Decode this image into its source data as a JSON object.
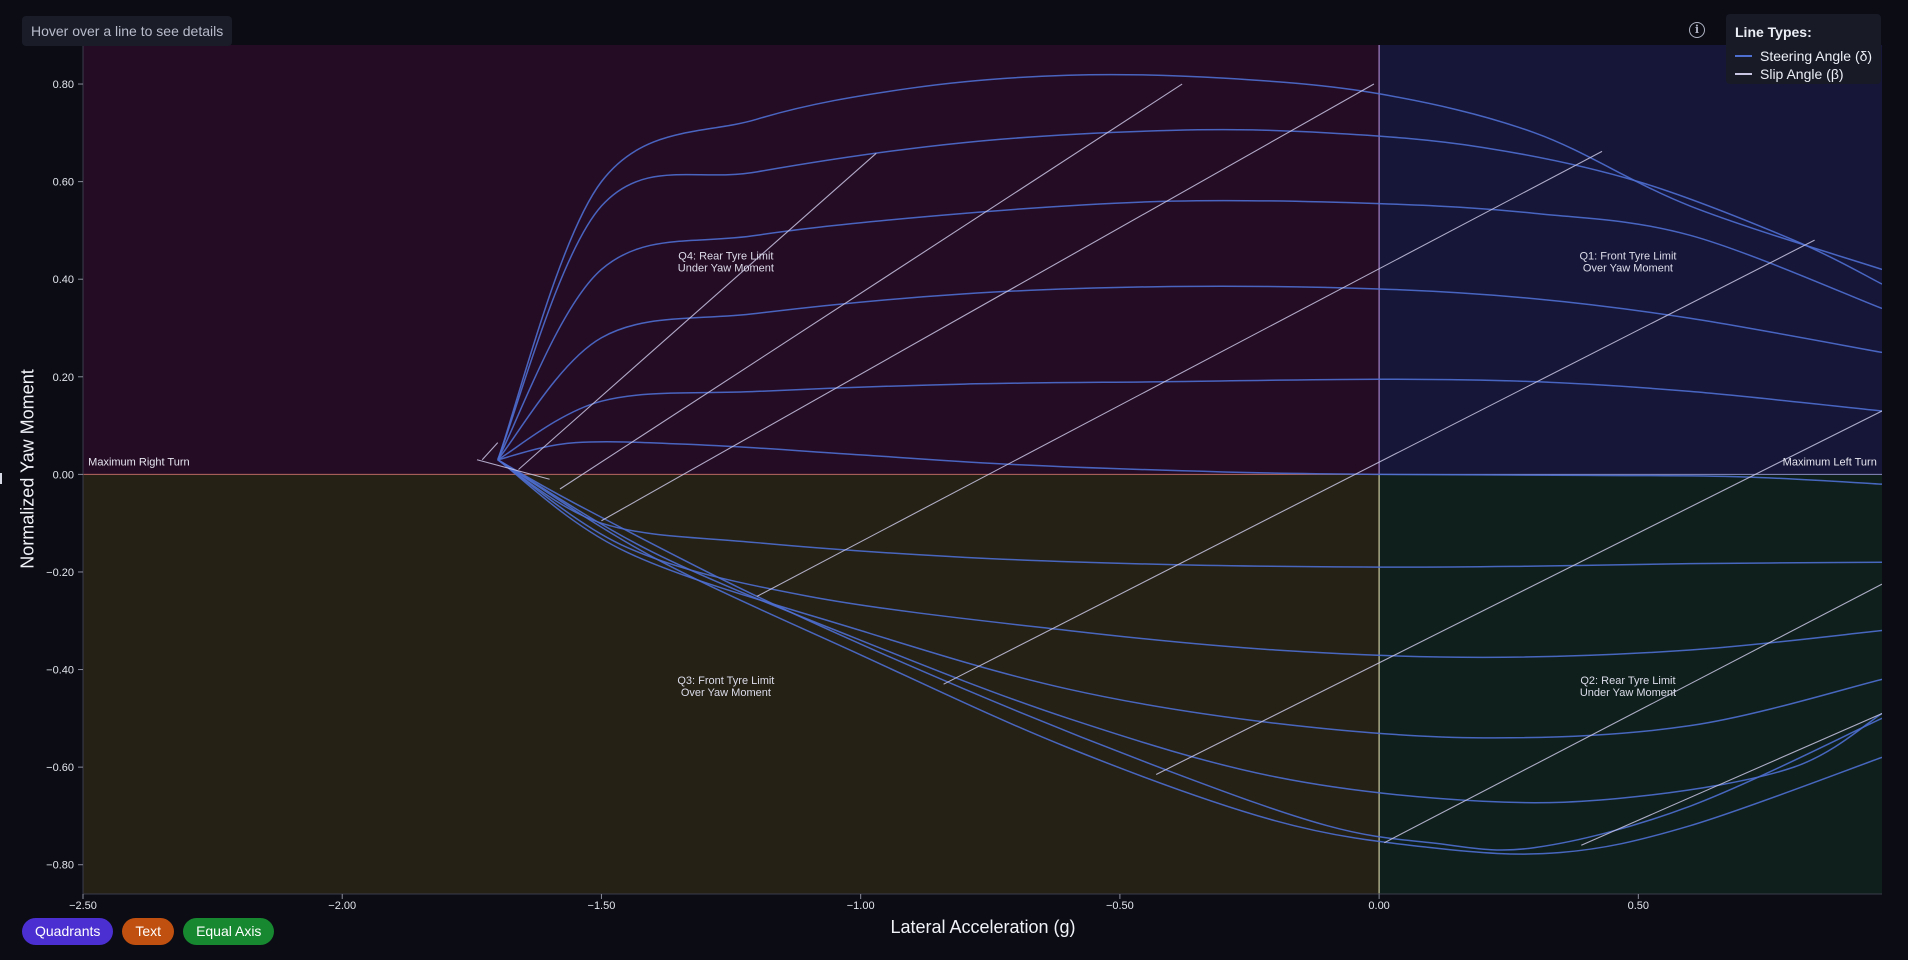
{
  "hint_text": "Hover over a line to see details",
  "info_icon": "info-circle-icon",
  "legend": {
    "title": "Line Types:",
    "items": [
      {
        "label": "Steering Angle (δ)",
        "color": "#4e6ed0"
      },
      {
        "label": "Slip Angle (β)",
        "color": "#c9c6e4"
      }
    ]
  },
  "controls": [
    {
      "label": "Quadrants",
      "color": "#4b2fd0"
    },
    {
      "label": "Text",
      "color": "#c0500f"
    },
    {
      "label": "Equal Axis",
      "color": "#17882f"
    }
  ],
  "chart_data": {
    "type": "line",
    "title": "",
    "xlabel": "Lateral Acceleration (g)",
    "ylabel": "Normalized Yaw Moment",
    "xlim": [
      -2.5,
      0.97
    ],
    "ylim": [
      -0.86,
      0.88
    ],
    "xticks": [
      -2.5,
      -2.0,
      -1.5,
      -1.0,
      -0.5,
      0.0,
      0.5
    ],
    "xtick_labels": [
      "−2.50",
      "−2.00",
      "−1.50",
      "−1.00",
      "−0.50",
      "0.00",
      "0.50"
    ],
    "yticks": [
      0.8,
      0.6,
      0.4,
      0.2,
      0.0,
      -0.2,
      -0.4,
      -0.6,
      -0.8
    ],
    "ytick_labels": [
      "0.80",
      "0.60",
      "0.40",
      "0.20",
      "0.00",
      "−0.20",
      "−0.40",
      "−0.60",
      "−0.80"
    ],
    "quadrants": [
      {
        "name": "Q1",
        "label": "Q1: Front Tyre Limit\nOver Yaw Moment",
        "text_at": [
          0.48,
          0.44
        ],
        "x_range": [
          0,
          0.97
        ],
        "y_range": [
          0,
          0.88
        ],
        "color": "#161638"
      },
      {
        "name": "Q2",
        "label": "Q2: Rear Tyre Limit\nUnder Yaw Moment",
        "text_at": [
          0.48,
          -0.43
        ],
        "x_range": [
          0,
          0.97
        ],
        "y_range": [
          -0.86,
          0
        ],
        "color": "#0f201c"
      },
      {
        "name": "Q3",
        "label": "Q3: Front Tyre Limit\nOver Yaw Moment",
        "text_at": [
          -1.26,
          -0.43
        ],
        "x_range": [
          -2.5,
          0
        ],
        "y_range": [
          -0.86,
          0
        ],
        "color": "#252115"
      },
      {
        "name": "Q4",
        "label": "Q4: Rear Tyre Limit\nUnder Yaw Moment",
        "text_at": [
          -1.26,
          0.44
        ],
        "x_range": [
          -2.5,
          0
        ],
        "y_range": [
          0,
          0.88
        ],
        "color": "#250c25"
      }
    ],
    "annotations": [
      {
        "text": "Maximum Right Turn",
        "x": -2.49,
        "y": 0.018,
        "anchor": "start"
      },
      {
        "text": "Maximum Left Turn",
        "x": 0.96,
        "y": 0.018,
        "anchor": "end"
      }
    ],
    "series": [
      {
        "name": "Steering Angle (δ) 1",
        "kind": "steering",
        "points": [
          [
            -1.7,
            0.03
          ],
          [
            -1.5,
            0.6
          ],
          [
            -1.2,
            0.728
          ],
          [
            -0.9,
            0.792
          ],
          [
            -0.6,
            0.818
          ],
          [
            -0.3,
            0.812
          ],
          [
            0,
            0.78
          ],
          [
            0.3,
            0.7
          ],
          [
            0.6,
            0.55
          ],
          [
            0.97,
            0.42
          ]
        ]
      },
      {
        "name": "Steering Angle (δ) 2",
        "kind": "steering",
        "points": [
          [
            -1.7,
            0.03
          ],
          [
            -1.5,
            0.55
          ],
          [
            -1.2,
            0.62
          ],
          [
            -0.8,
            0.68
          ],
          [
            -0.4,
            0.705
          ],
          [
            -0.1,
            0.7
          ],
          [
            0.2,
            0.67
          ],
          [
            0.5,
            0.6
          ],
          [
            0.8,
            0.48
          ],
          [
            0.97,
            0.39
          ]
        ]
      },
      {
        "name": "Steering Angle (δ) 3",
        "kind": "steering",
        "points": [
          [
            -1.7,
            0.03
          ],
          [
            -1.5,
            0.42
          ],
          [
            -1.2,
            0.49
          ],
          [
            -0.8,
            0.535
          ],
          [
            -0.4,
            0.56
          ],
          [
            0,
            0.555
          ],
          [
            0.3,
            0.535
          ],
          [
            0.6,
            0.49
          ],
          [
            0.97,
            0.34
          ]
        ]
      },
      {
        "name": "Steering Angle (δ) 4",
        "kind": "steering",
        "points": [
          [
            -1.7,
            0.03
          ],
          [
            -1.5,
            0.28
          ],
          [
            -1.2,
            0.33
          ],
          [
            -0.8,
            0.37
          ],
          [
            -0.4,
            0.385
          ],
          [
            0,
            0.38
          ],
          [
            0.3,
            0.36
          ],
          [
            0.6,
            0.32
          ],
          [
            0.97,
            0.25
          ]
        ]
      },
      {
        "name": "Steering Angle (δ) 5",
        "kind": "steering",
        "points": [
          [
            -1.7,
            0.03
          ],
          [
            -1.5,
            0.15
          ],
          [
            -1.2,
            0.17
          ],
          [
            -0.8,
            0.185
          ],
          [
            -0.4,
            0.19
          ],
          [
            0,
            0.195
          ],
          [
            0.3,
            0.19
          ],
          [
            0.6,
            0.17
          ],
          [
            0.97,
            0.13
          ]
        ]
      },
      {
        "name": "Steering Angle (δ) 6",
        "kind": "steering",
        "points": [
          [
            -1.7,
            0.03
          ],
          [
            -1.55,
            0.065
          ],
          [
            -1.3,
            0.06
          ],
          [
            -1.0,
            0.04
          ],
          [
            -0.7,
            0.02
          ],
          [
            -0.3,
            0.005
          ],
          [
            0,
            0.0
          ],
          [
            0.4,
            -0.002
          ],
          [
            0.7,
            -0.005
          ],
          [
            0.97,
            -0.02
          ]
        ]
      },
      {
        "name": "Steering Angle (δ) 7",
        "kind": "steering",
        "points": [
          [
            -1.7,
            0.03
          ],
          [
            -1.5,
            -0.1
          ],
          [
            -1.2,
            -0.14
          ],
          [
            -0.8,
            -0.17
          ],
          [
            -0.4,
            -0.185
          ],
          [
            0,
            -0.19
          ],
          [
            0.3,
            -0.188
          ],
          [
            0.6,
            -0.183
          ],
          [
            0.97,
            -0.18
          ]
        ]
      },
      {
        "name": "Steering Angle (δ) 8",
        "kind": "steering",
        "points": [
          [
            -1.7,
            0.03
          ],
          [
            -1.45,
            -0.15
          ],
          [
            -1.1,
            -0.25
          ],
          [
            -0.6,
            -0.32
          ],
          [
            -0.2,
            -0.36
          ],
          [
            0.2,
            -0.375
          ],
          [
            0.6,
            -0.36
          ],
          [
            0.97,
            -0.32
          ]
        ]
      },
      {
        "name": "Steering Angle (δ) 9",
        "kind": "steering",
        "points": [
          [
            -1.7,
            0.03
          ],
          [
            -1.45,
            -0.16
          ],
          [
            -1.0,
            -0.32
          ],
          [
            -0.6,
            -0.44
          ],
          [
            -0.2,
            -0.51
          ],
          [
            0.2,
            -0.54
          ],
          [
            0.6,
            -0.515
          ],
          [
            0.97,
            -0.42
          ]
        ]
      },
      {
        "name": "Steering Angle (δ) 10",
        "kind": "steering",
        "points": [
          [
            -1.7,
            0.03
          ],
          [
            -1.4,
            -0.16
          ],
          [
            -1.0,
            -0.34
          ],
          [
            -0.6,
            -0.5
          ],
          [
            -0.2,
            -0.62
          ],
          [
            0.2,
            -0.67
          ],
          [
            0.5,
            -0.66
          ],
          [
            0.8,
            -0.6
          ],
          [
            0.97,
            -0.49
          ]
        ]
      },
      {
        "name": "Steering Angle (δ) 11",
        "kind": "steering",
        "points": [
          [
            -1.7,
            0.03
          ],
          [
            -1.4,
            -0.17
          ],
          [
            -1.0,
            -0.37
          ],
          [
            -0.6,
            -0.56
          ],
          [
            -0.2,
            -0.71
          ],
          [
            0.1,
            -0.765
          ],
          [
            0.35,
            -0.775
          ],
          [
            0.6,
            -0.72
          ],
          [
            0.97,
            -0.58
          ]
        ]
      },
      {
        "name": "Steering Angle (δ) 12",
        "kind": "steering",
        "points": [
          [
            -1.7,
            0.03
          ],
          [
            -1.55,
            -0.06
          ],
          [
            -1.2,
            -0.25
          ],
          [
            -0.8,
            -0.44
          ],
          [
            -0.4,
            -0.61
          ],
          [
            -0.1,
            -0.72
          ],
          [
            0.1,
            -0.755
          ],
          [
            0.3,
            -0.765
          ],
          [
            0.6,
            -0.68
          ],
          [
            0.97,
            -0.5
          ]
        ]
      },
      {
        "name": "Slip Angle (β) 1",
        "kind": "slip",
        "points": [
          [
            -1.66,
            0.01
          ],
          [
            -0.97,
            0.658
          ]
        ]
      },
      {
        "name": "Slip Angle (β) 2",
        "kind": "slip",
        "points": [
          [
            -1.58,
            -0.03
          ],
          [
            -0.38,
            0.8
          ]
        ]
      },
      {
        "name": "Slip Angle (β) 3",
        "kind": "slip",
        "points": [
          [
            -1.5,
            -0.095
          ],
          [
            -0.01,
            0.8
          ]
        ]
      },
      {
        "name": "Slip Angle (β) 4",
        "kind": "slip",
        "points": [
          [
            -1.2,
            -0.25
          ],
          [
            0.43,
            0.662
          ]
        ]
      },
      {
        "name": "Slip Angle (β) 5",
        "kind": "slip",
        "points": [
          [
            -0.84,
            -0.43
          ],
          [
            0.84,
            0.48
          ]
        ]
      },
      {
        "name": "Slip Angle (β) 6",
        "kind": "slip",
        "points": [
          [
            -0.43,
            -0.615
          ],
          [
            0.97,
            0.13
          ]
        ]
      },
      {
        "name": "Slip Angle (β) 7",
        "kind": "slip",
        "points": [
          [
            0.01,
            -0.755
          ],
          [
            0.97,
            -0.225
          ]
        ]
      },
      {
        "name": "Slip Angle (β) 8",
        "kind": "slip",
        "points": [
          [
            0.39,
            -0.76
          ],
          [
            0.97,
            -0.49
          ]
        ]
      },
      {
        "name": "Slip Angle (β) 9",
        "kind": "slip",
        "points": [
          [
            -1.74,
            0.03
          ],
          [
            -1.6,
            -0.01
          ]
        ]
      },
      {
        "name": "Slip Angle (β) 10",
        "kind": "slip",
        "points": [
          [
            -1.73,
            0.03
          ],
          [
            -1.7,
            0.065
          ]
        ]
      }
    ]
  }
}
